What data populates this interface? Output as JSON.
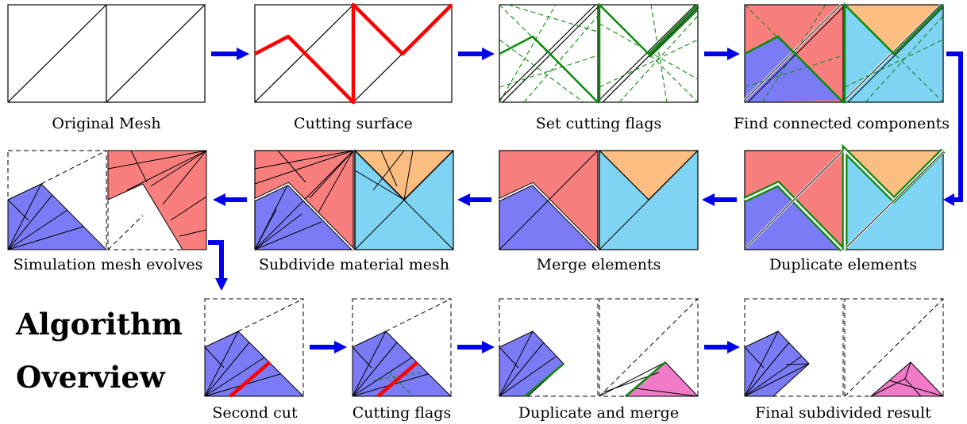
{
  "title": {
    "line1": "Algorithm",
    "line2": "Overview"
  },
  "captions": {
    "original_mesh": "Original Mesh",
    "cutting_surface": "Cutting surface",
    "set_cutting_flags": "Set cutting flags",
    "find_connected_components": "Find connected components",
    "simulation_mesh_evolves": "Simulation mesh evolves",
    "subdivide_material_mesh": "Subdivide material mesh",
    "merge_elements": "Merge elements",
    "duplicate_elements": "Duplicate elements",
    "second_cut": "Second cut",
    "cutting_flags": "Cutting flags",
    "duplicate_and_merge": "Duplicate and merge",
    "final_subdivided_result": "Final subdivided result"
  },
  "colors": {
    "red": "#f97f7f",
    "blue": "#7b7bf5",
    "orange": "#fbbd80",
    "cyan": "#7fd3f3",
    "pink": "#f17bc8",
    "cut_red": "#ff0000",
    "flag_green": "#0a8a0a",
    "arrow_blue": "#0000ee"
  }
}
